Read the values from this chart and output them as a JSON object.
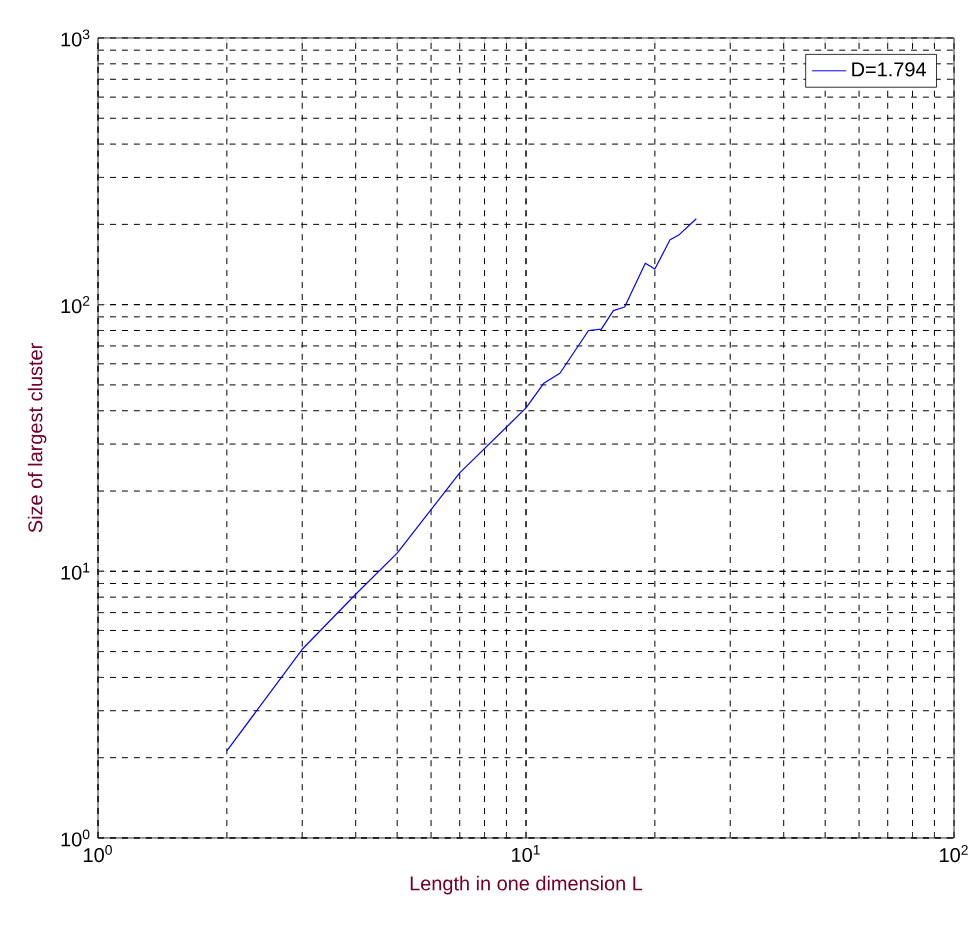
{
  "chart_data": {
    "type": "line",
    "xlabel": "Length in one dimension L",
    "ylabel": "Size of largest cluster",
    "log": "xy",
    "grid": true,
    "legend": "top right",
    "marker": "none",
    "line_style": "solid",
    "xlim": [
      1,
      100
    ],
    "ylim": [
      1,
      1000
    ],
    "xticks": [
      {
        "value": 1,
        "label": "10$^{0}$"
      },
      {
        "value": 10,
        "label": "10$^{1}$"
      },
      {
        "value": 100,
        "label": "10$^{2}$"
      }
    ],
    "yticks": [
      {
        "value": 1,
        "label": "10$^{0}$"
      },
      {
        "value": 10,
        "label": "10$^{1}$"
      },
      {
        "value": 100,
        "label": "10$^{2}$"
      },
      {
        "value": 1000,
        "label": "10$^{3}$"
      }
    ],
    "series": [
      {
        "name": "D=1.794",
        "color": "#0000ff",
        "x": [
          2,
          3,
          4,
          5,
          7,
          10,
          11,
          12,
          14,
          15,
          16,
          17,
          19,
          20,
          21.7,
          22.8,
          25
        ],
        "values": [
          2.12,
          5.1,
          8.2,
          11.7,
          23.4,
          41,
          50.7,
          55.3,
          80,
          81,
          95,
          98,
          143,
          136,
          175,
          183,
          210
        ]
      }
    ]
  }
}
